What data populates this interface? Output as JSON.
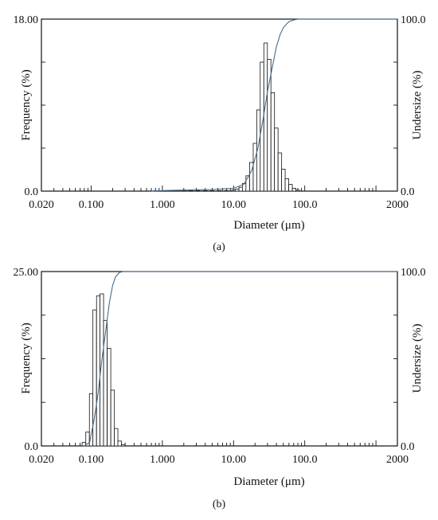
{
  "figure": {
    "panels": [
      {
        "caption": "(a)"
      },
      {
        "caption": "(b)"
      }
    ]
  },
  "chart_data": [
    {
      "type": "bar",
      "panel": "(a)",
      "xlabel": "Diameter (μm)",
      "ylabel_left": "Frequency (%)",
      "ylabel_right": "Undersize (%)",
      "x_scale": "log",
      "xlim": [
        0.02,
        2000
      ],
      "x_ticks": [
        "0.020",
        "0.100",
        "1.000",
        "10.00",
        "100.0",
        "2000"
      ],
      "x_tick_values": [
        0.02,
        0.1,
        1,
        10,
        100,
        2000
      ],
      "ylim_left": [
        0,
        18
      ],
      "y_ticks_left": [
        "0.0",
        "18.00"
      ],
      "ylim_right": [
        0,
        100
      ],
      "y_ticks_right": [
        "0.0",
        "100.0"
      ],
      "bin_ratio": 1.122,
      "histogram": {
        "x": [
          0.8,
          1.0,
          1.26,
          1.58,
          2.0,
          2.51,
          3.16,
          4.0,
          5.0,
          6.3,
          7.9,
          10.0,
          11.2,
          12.6,
          14.1,
          15.8,
          17.8,
          20.0,
          22.4,
          25.1,
          28.2,
          31.6,
          35.5,
          39.8,
          44.7,
          50.1,
          56.2,
          63.1,
          70.8,
          79.4
        ],
        "values": [
          0.05,
          0.05,
          0.05,
          0.05,
          0.05,
          0.05,
          0.05,
          0.05,
          0.05,
          0.05,
          0.05,
          0.1,
          0.2,
          0.4,
          0.8,
          1.6,
          3.0,
          5.0,
          8.5,
          13.5,
          15.5,
          13.8,
          10.3,
          6.6,
          4.0,
          2.3,
          1.3,
          0.7,
          0.3,
          0.1
        ]
      },
      "cumulative_curve": {
        "name": "Undersize",
        "x": [
          0.7,
          1.0,
          2.0,
          5.0,
          10.0,
          14.0,
          18.0,
          22.0,
          26.0,
          30.0,
          35.0,
          40.0,
          45.0,
          50.0,
          55.0,
          60.0,
          70.0,
          80.0,
          100.0,
          2000.0
        ],
        "values": [
          0.0,
          0.3,
          0.6,
          0.9,
          1.6,
          4.0,
          12.0,
          25.0,
          42.0,
          58.0,
          72.0,
          84.0,
          91.0,
          95.0,
          97.0,
          98.5,
          99.5,
          100.0,
          100.0,
          100.0
        ]
      },
      "grid": false
    },
    {
      "type": "bar",
      "panel": "(b)",
      "xlabel": "Diameter (μm)",
      "ylabel_left": "Frequency (%)",
      "ylabel_right": "Undersize (%)",
      "x_scale": "log",
      "xlim": [
        0.02,
        2000
      ],
      "x_ticks": [
        "0.020",
        "0.100",
        "1.000",
        "10.00",
        "100.0",
        "2000"
      ],
      "x_tick_values": [
        0.02,
        0.1,
        1,
        10,
        100,
        2000
      ],
      "ylim_left": [
        0,
        25
      ],
      "y_ticks_left": [
        "0.0",
        "25.00"
      ],
      "ylim_right": [
        0,
        100
      ],
      "y_ticks_right": [
        "0.0",
        "100.0"
      ],
      "bin_ratio": 1.122,
      "histogram": {
        "x": [
          0.079,
          0.089,
          0.1,
          0.112,
          0.126,
          0.141,
          0.158,
          0.178,
          0.2,
          0.224,
          0.251,
          0.282
        ],
        "values": [
          0.5,
          2.0,
          7.5,
          19.5,
          21.5,
          21.8,
          18.0,
          14.0,
          8.0,
          2.5,
          0.7,
          0.2
        ]
      },
      "cumulative_curve": {
        "name": "Undersize",
        "x": [
          0.08,
          0.095,
          0.11,
          0.125,
          0.14,
          0.16,
          0.18,
          0.2,
          0.22,
          0.25,
          0.28,
          0.3,
          2000.0
        ],
        "values": [
          0.0,
          2.0,
          15.0,
          30.0,
          48.0,
          66.0,
          82.0,
          92.0,
          97.0,
          99.5,
          100.0,
          100.0,
          100.0
        ]
      },
      "grid": false
    }
  ]
}
